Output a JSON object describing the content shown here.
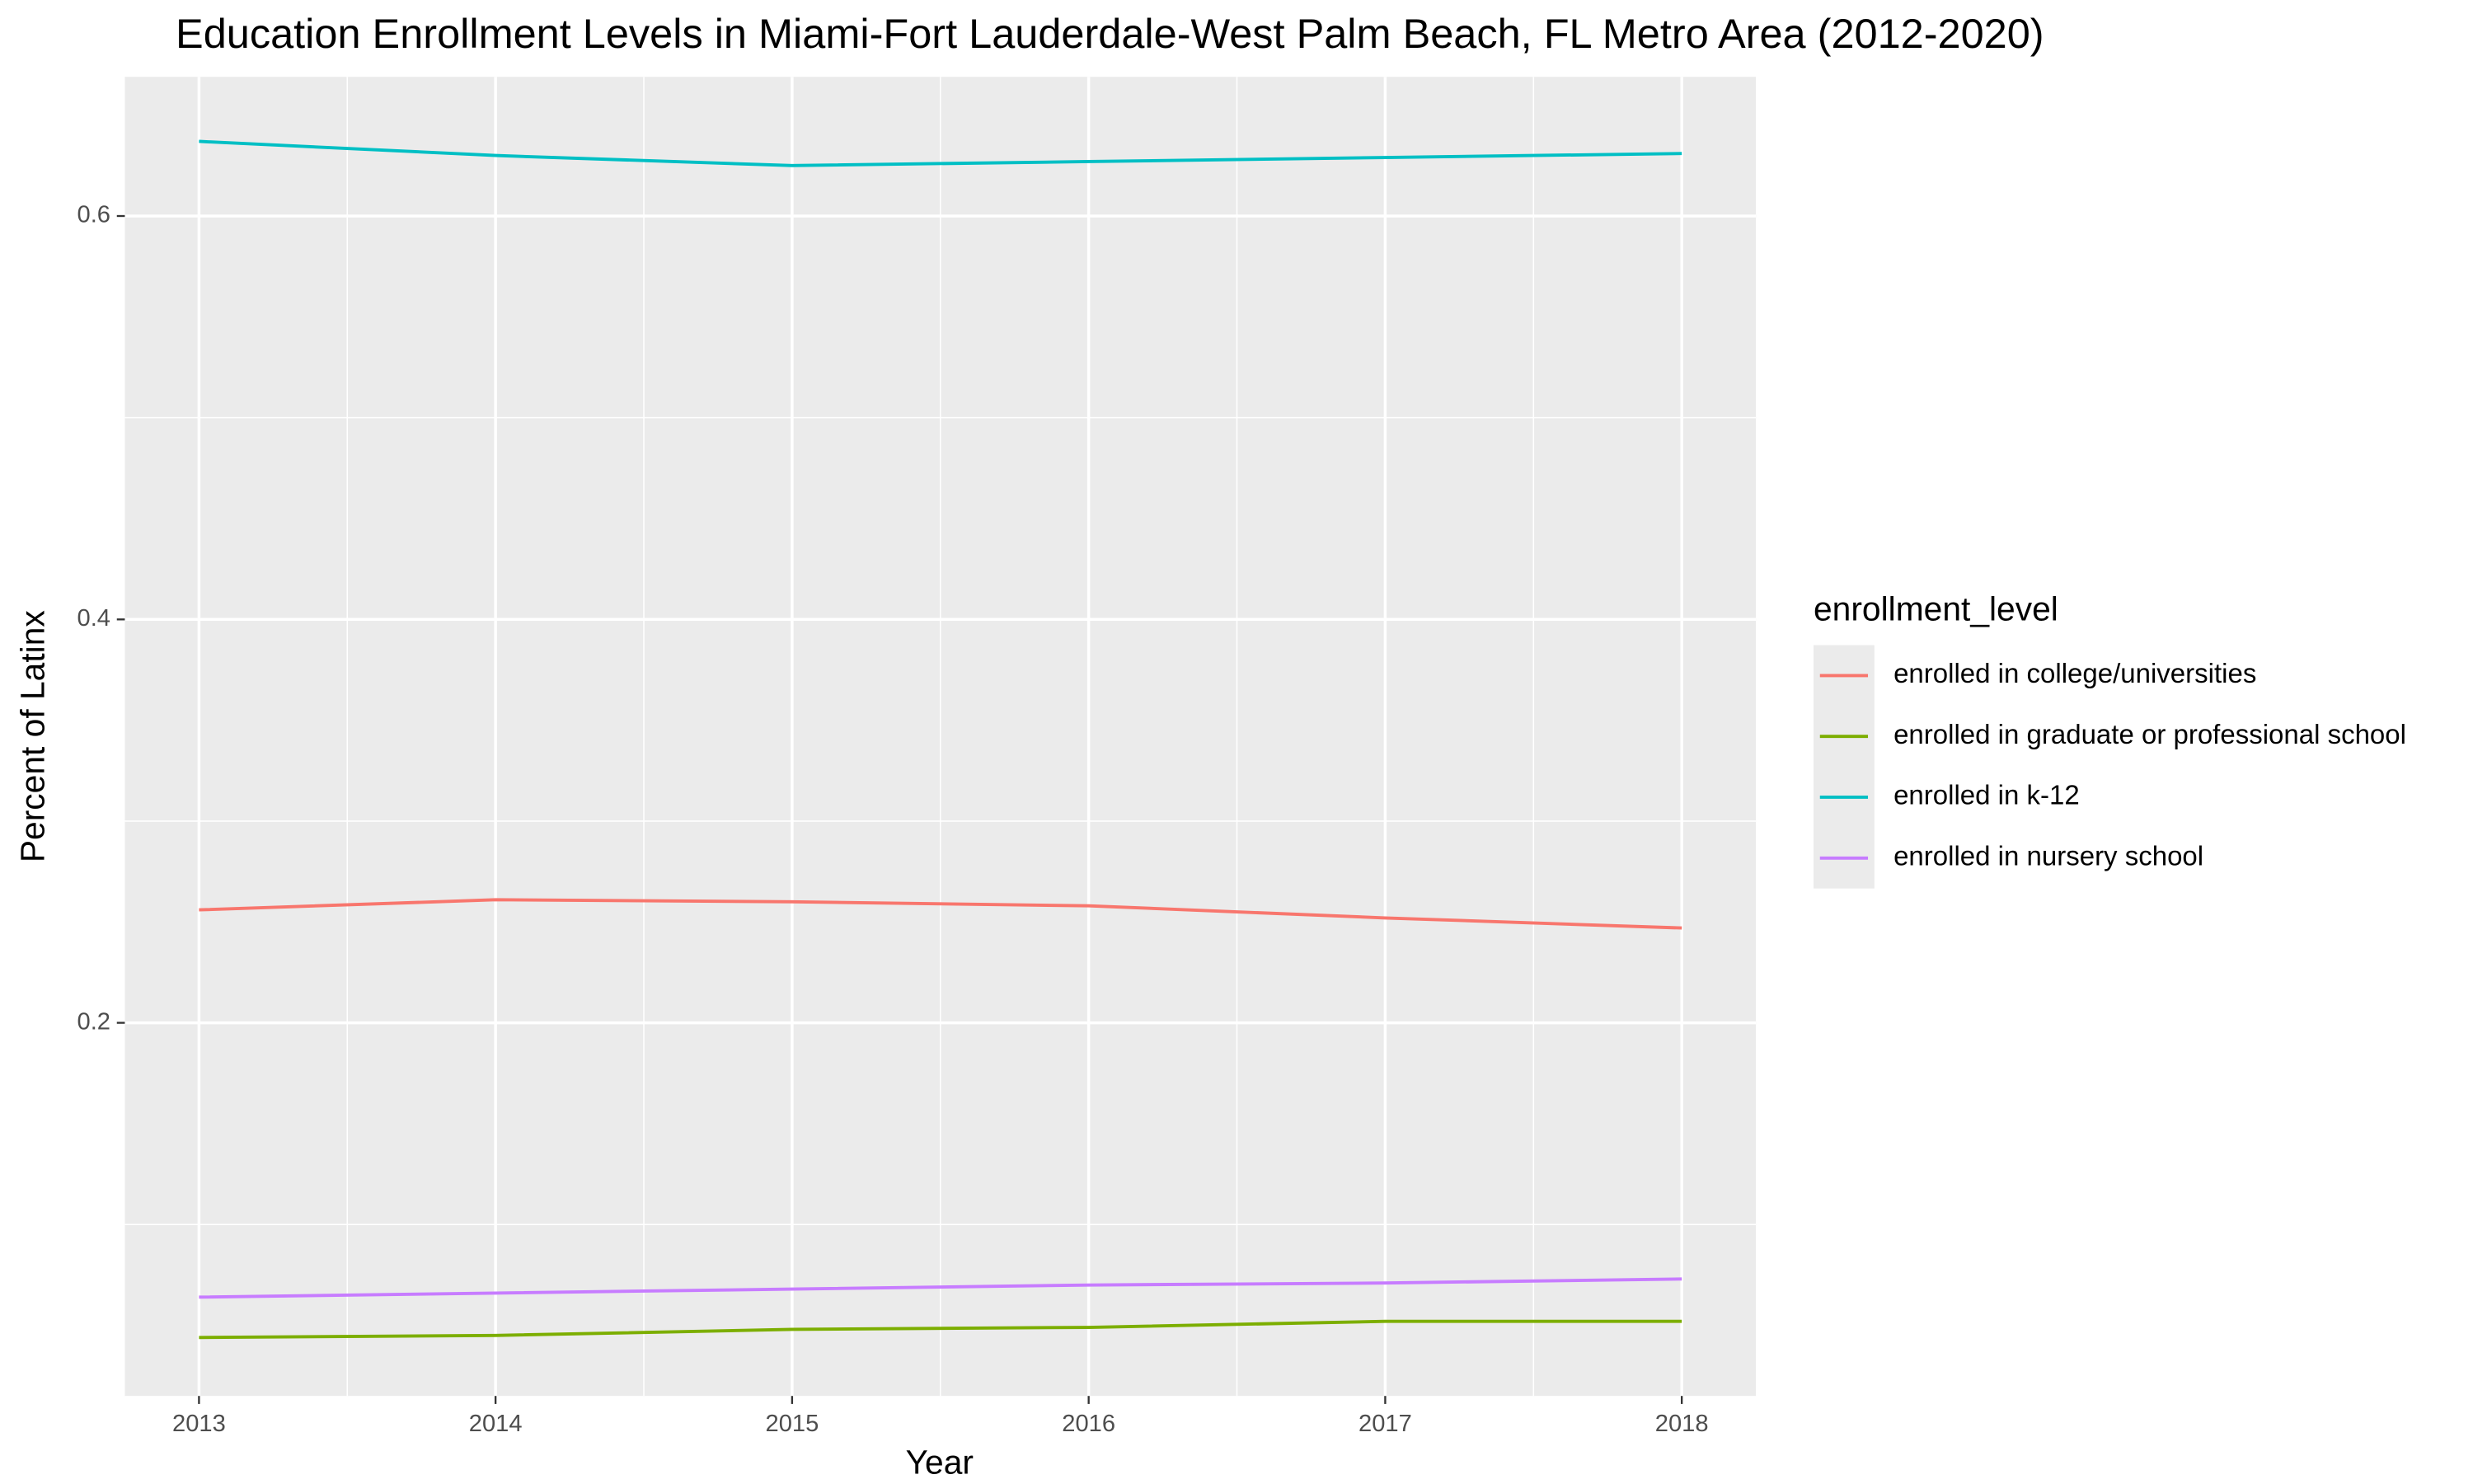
{
  "chart_data": {
    "type": "line",
    "title": "Education Enrollment Levels in Miami-Fort Lauderdale-West Palm Beach, FL Metro Area (2012-2020)",
    "x_label": "Year",
    "y_label": "Percent of Latinx",
    "legend_title": "enrollment_level",
    "legend_position": "right",
    "grid": true,
    "x": [
      2013,
      2014,
      2015,
      2016,
      2017,
      2018
    ],
    "xlim": [
      2012.75,
      2018.25
    ],
    "xticks": [
      2013,
      2014,
      2015,
      2016,
      2017,
      2018
    ],
    "x_minor_ticks": [
      2013.5,
      2014.5,
      2015.5,
      2016.5,
      2017.5
    ],
    "ylim": [
      0.015,
      0.669
    ],
    "yticks": [
      0.2,
      0.4,
      0.6
    ],
    "y_minor_ticks": [
      0.1,
      0.3,
      0.5
    ],
    "series": [
      {
        "name": "enrolled in college/universities",
        "color": "#F8766D",
        "values": [
          0.256,
          0.261,
          0.26,
          0.258,
          0.252,
          0.247
        ]
      },
      {
        "name": "enrolled in graduate or professional school",
        "color": "#7CAE00",
        "values": [
          0.044,
          0.045,
          0.048,
          0.049,
          0.052,
          0.052
        ]
      },
      {
        "name": "enrolled in k-12",
        "color": "#00BFC4",
        "values": [
          0.637,
          0.63,
          0.625,
          0.627,
          0.629,
          0.631
        ]
      },
      {
        "name": "enrolled in nursery school",
        "color": "#C77CFF",
        "values": [
          0.064,
          0.066,
          0.068,
          0.07,
          0.071,
          0.073
        ]
      }
    ]
  }
}
